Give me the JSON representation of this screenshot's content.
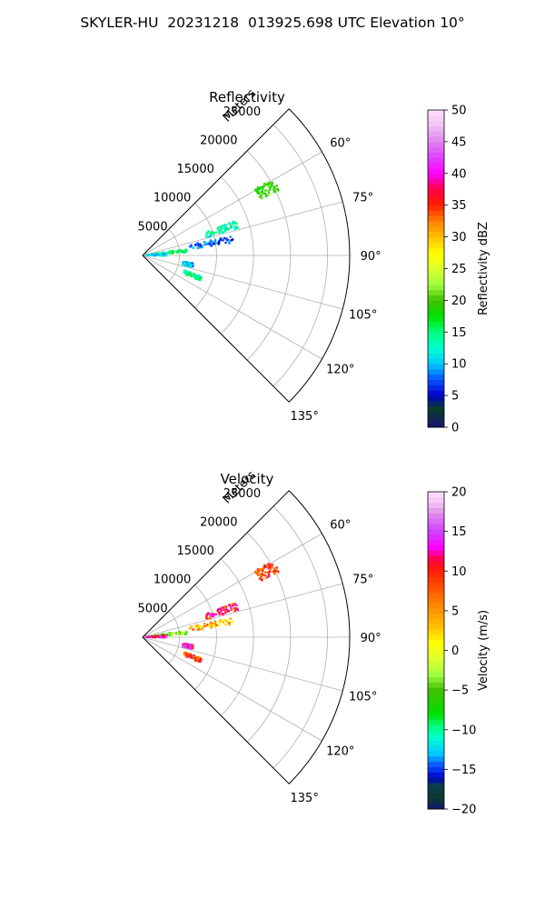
{
  "figure": {
    "title": "SKYLER-HU  20231218  013925.698 UTC Elevation 10°"
  },
  "chart_data": [
    {
      "type": "polar-sector",
      "title": "Reflectivity",
      "radial_label": "Meters",
      "radial_ticks": [
        5000,
        10000,
        15000,
        20000,
        25000
      ],
      "radial_ticks_text": [
        "5000",
        "10000",
        "15000",
        "20000",
        "25000"
      ],
      "radial_range": [
        0,
        28000
      ],
      "azimuth_ticks": [
        60,
        75,
        90,
        105,
        120,
        135
      ],
      "azimuth_ticks_text": [
        "60°",
        "75°",
        "90°",
        "105°",
        "120°",
        "135°"
      ],
      "azimuth_range": [
        45,
        135
      ],
      "grid": true,
      "colorbar": {
        "label": "Reflectivity dBZ",
        "vmin": 0,
        "vmax": 50,
        "ticks": [
          0,
          5,
          10,
          15,
          20,
          25,
          30,
          35,
          40,
          45,
          50
        ],
        "ticks_text": [
          "0",
          "5",
          "10",
          "15",
          "20",
          "25",
          "30",
          "35",
          "40",
          "45",
          "50"
        ],
        "colormap": [
          [
            0,
            "#141470"
          ],
          [
            3,
            "#0a3c2a"
          ],
          [
            5,
            "#0000c8"
          ],
          [
            7.5,
            "#0a50ff"
          ],
          [
            10,
            "#00c8ff"
          ],
          [
            12.5,
            "#00ffd0"
          ],
          [
            15,
            "#00ff80"
          ],
          [
            17.5,
            "#00e000"
          ],
          [
            20,
            "#40c000"
          ],
          [
            22.5,
            "#a0ff40"
          ],
          [
            25,
            "#e0ff30"
          ],
          [
            27.5,
            "#ffff00"
          ],
          [
            30,
            "#ffc000"
          ],
          [
            32.5,
            "#ff8000"
          ],
          [
            35,
            "#ff2000"
          ],
          [
            37.5,
            "#ff0040"
          ],
          [
            40,
            "#ff00ff"
          ],
          [
            42.5,
            "#e040ff"
          ],
          [
            45,
            "#e080f0"
          ],
          [
            47.5,
            "#f0c0f0"
          ],
          [
            50,
            "#ffe0ff"
          ]
        ]
      },
      "echo_clusters": [
        {
          "azimuth": 62,
          "range_start": 17500,
          "range_end": 20500,
          "value": 20
        },
        {
          "azimuth": 72,
          "range_start": 9000,
          "range_end": 13500,
          "value": 13
        },
        {
          "azimuth": 80,
          "range_start": 6500,
          "range_end": 12500,
          "value": 8
        },
        {
          "azimuth": 84,
          "range_start": 1000,
          "range_end": 6000,
          "value": 15
        },
        {
          "azimuth": 88,
          "range_start": 500,
          "range_end": 3500,
          "value": 11
        },
        {
          "azimuth": 101,
          "range_start": 5500,
          "range_end": 7000,
          "value": 10
        },
        {
          "azimuth": 112,
          "range_start": 6000,
          "range_end": 8500,
          "value": 14
        }
      ]
    },
    {
      "type": "polar-sector",
      "title": "Velocity",
      "radial_label": "Meters",
      "radial_ticks": [
        5000,
        10000,
        15000,
        20000,
        25000
      ],
      "radial_ticks_text": [
        "5000",
        "10000",
        "15000",
        "20000",
        "25000"
      ],
      "radial_range": [
        0,
        28000
      ],
      "azimuth_ticks": [
        60,
        75,
        90,
        105,
        120,
        135
      ],
      "azimuth_ticks_text": [
        "60°",
        "75°",
        "90°",
        "105°",
        "120°",
        "135°"
      ],
      "azimuth_range": [
        45,
        135
      ],
      "grid": true,
      "colorbar": {
        "label": "Velocity (m/s)",
        "vmin": -20,
        "vmax": 20,
        "ticks": [
          -20,
          -15,
          -10,
          -5,
          0,
          5,
          10,
          15,
          20
        ],
        "ticks_text": [
          "−20",
          "−15",
          "−10",
          "−5",
          "0",
          "5",
          "10",
          "15",
          "20"
        ],
        "colormap": [
          [
            -20,
            "#141470"
          ],
          [
            -18.5,
            "#0a3c2a"
          ],
          [
            -17,
            "#0a3c50"
          ],
          [
            -16,
            "#0000c8"
          ],
          [
            -14.5,
            "#0a50ff"
          ],
          [
            -13,
            "#00c8ff"
          ],
          [
            -11,
            "#00ffd0"
          ],
          [
            -9.5,
            "#00ff80"
          ],
          [
            -8,
            "#00e000"
          ],
          [
            -5,
            "#40c000"
          ],
          [
            -3,
            "#a0ff40"
          ],
          [
            -1,
            "#e0ff30"
          ],
          [
            1,
            "#ffff00"
          ],
          [
            3,
            "#ffc000"
          ],
          [
            6,
            "#ff8000"
          ],
          [
            8,
            "#ff5000"
          ],
          [
            10,
            "#ff2000"
          ],
          [
            11.5,
            "#ff0040"
          ],
          [
            13,
            "#ff00ff"
          ],
          [
            15,
            "#d040ff"
          ],
          [
            17,
            "#e080f0"
          ],
          [
            18.5,
            "#f0c0f0"
          ],
          [
            20,
            "#ffe0ff"
          ]
        ]
      },
      "echo_clusters": [
        {
          "azimuth": 62,
          "range_start": 17500,
          "range_end": 20500,
          "value": 9
        },
        {
          "azimuth": 72,
          "range_start": 9000,
          "range_end": 13500,
          "value": 10
        },
        {
          "azimuth": 80,
          "range_start": 6500,
          "range_end": 12500,
          "value": 4
        },
        {
          "azimuth": 84,
          "range_start": 1000,
          "range_end": 6000,
          "value": -4
        },
        {
          "azimuth": 88,
          "range_start": 500,
          "range_end": 3500,
          "value": 13
        },
        {
          "azimuth": 101,
          "range_start": 5500,
          "range_end": 7000,
          "value": 13
        },
        {
          "azimuth": 112,
          "range_start": 6000,
          "range_end": 8500,
          "value": 8
        }
      ]
    }
  ]
}
